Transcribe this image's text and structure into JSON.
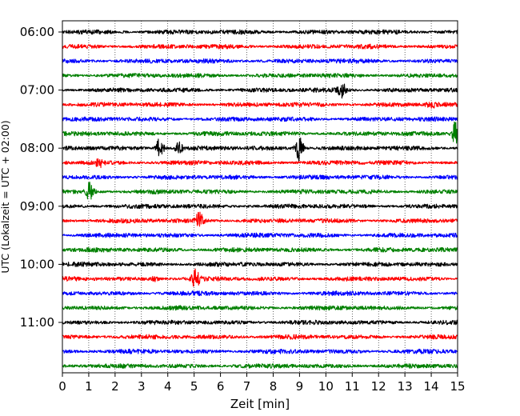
{
  "chart_data": {
    "type": "line",
    "title": "",
    "xlabel": "Zeit  [min]",
    "ylabel": "UTC (Lokalzeit = UTC + 02:00)",
    "xlim": [
      0,
      15
    ],
    "x_ticks": [
      0,
      1,
      2,
      3,
      4,
      5,
      6,
      7,
      8,
      9,
      10,
      11,
      12,
      13,
      14,
      15
    ],
    "grid_x": true,
    "row_interval_min": 15,
    "y_tick_labels": [
      {
        "row": 0,
        "label": "06:00"
      },
      {
        "row": 4,
        "label": "07:00"
      },
      {
        "row": 8,
        "label": "08:00"
      },
      {
        "row": 12,
        "label": "09:00"
      },
      {
        "row": 16,
        "label": "10:00"
      },
      {
        "row": 20,
        "label": "11:00"
      }
    ],
    "color_cycle": [
      "#000000",
      "#ff0000",
      "#0000ff",
      "#008000"
    ],
    "rows": [
      {
        "start": "06:00",
        "events": []
      },
      {
        "start": "06:15",
        "events": []
      },
      {
        "start": "06:30",
        "events": []
      },
      {
        "start": "06:45",
        "events": []
      },
      {
        "start": "07:00",
        "events": [
          {
            "t": 10.6,
            "amp": 0.45
          }
        ]
      },
      {
        "start": "07:15",
        "events": [
          {
            "t": 14.0,
            "amp": 0.15
          }
        ]
      },
      {
        "start": "07:30",
        "events": []
      },
      {
        "start": "07:45",
        "events": [
          {
            "t": 14.95,
            "amp": 0.8
          }
        ]
      },
      {
        "start": "08:00",
        "events": [
          {
            "t": 3.7,
            "amp": 0.6
          },
          {
            "t": 9.0,
            "amp": 0.7
          },
          {
            "t": 4.4,
            "amp": 0.3
          }
        ]
      },
      {
        "start": "08:15",
        "events": [
          {
            "t": 1.4,
            "amp": 0.2
          }
        ]
      },
      {
        "start": "08:30",
        "events": []
      },
      {
        "start": "08:45",
        "events": [
          {
            "t": 1.05,
            "amp": 0.5
          }
        ]
      },
      {
        "start": "09:00",
        "events": []
      },
      {
        "start": "09:15",
        "events": [
          {
            "t": 5.2,
            "amp": 0.45
          }
        ]
      },
      {
        "start": "09:30",
        "events": []
      },
      {
        "start": "09:45",
        "events": []
      },
      {
        "start": "10:00",
        "events": []
      },
      {
        "start": "10:15",
        "events": [
          {
            "t": 5.05,
            "amp": 0.5
          },
          {
            "t": 3.5,
            "amp": 0.12
          }
        ]
      },
      {
        "start": "10:30",
        "events": []
      },
      {
        "start": "10:45",
        "events": []
      },
      {
        "start": "11:00",
        "events": []
      },
      {
        "start": "11:15",
        "events": []
      },
      {
        "start": "11:30",
        "events": []
      },
      {
        "start": "11:45",
        "events": []
      }
    ]
  }
}
